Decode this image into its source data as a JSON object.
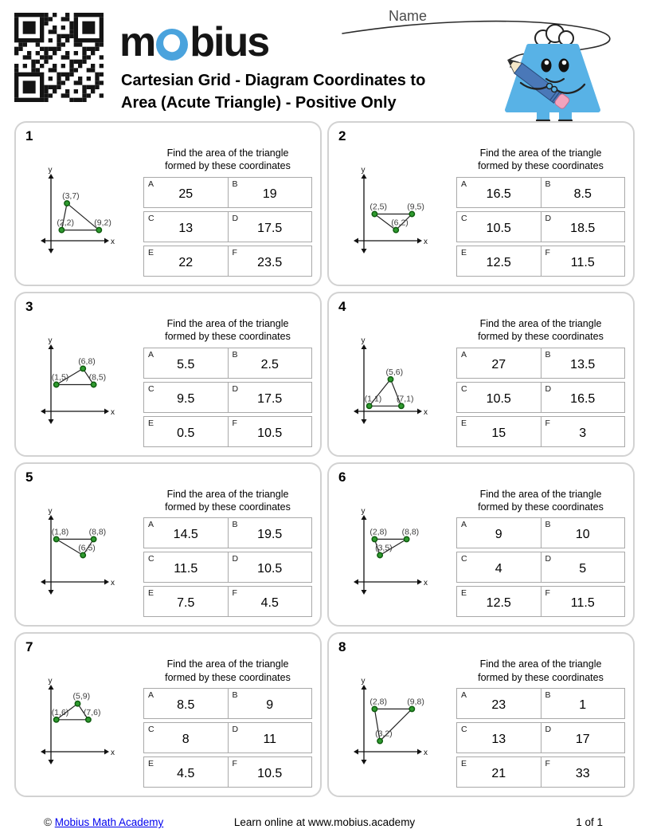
{
  "header": {
    "logo_text_m": "m",
    "logo_text_rest": "bius",
    "title_line1": "Cartesian Grid - Diagram Coordinates to",
    "title_line2": "Area (Acute Triangle) - Positive Only",
    "name_label": "Name"
  },
  "prompt": {
    "line1": "Find the area of the triangle",
    "line2": "formed by these coordinates"
  },
  "axis_labels": {
    "x": "x",
    "y": "y"
  },
  "problems": [
    {
      "number": "1",
      "points": [
        [
          3,
          7
        ],
        [
          2,
          2
        ],
        [
          9,
          2
        ]
      ],
      "point_labels": [
        "(3,7)",
        "(2,2)",
        "(9,2)"
      ],
      "answers": [
        {
          "letter": "A",
          "value": "25"
        },
        {
          "letter": "B",
          "value": "19"
        },
        {
          "letter": "C",
          "value": "13"
        },
        {
          "letter": "D",
          "value": "17.5"
        },
        {
          "letter": "E",
          "value": "22"
        },
        {
          "letter": "F",
          "value": "23.5"
        }
      ]
    },
    {
      "number": "2",
      "points": [
        [
          2,
          5
        ],
        [
          9,
          5
        ],
        [
          6,
          2
        ]
      ],
      "point_labels": [
        "(2,5)",
        "(9,5)",
        "(6,2)"
      ],
      "answers": [
        {
          "letter": "A",
          "value": "16.5"
        },
        {
          "letter": "B",
          "value": "8.5"
        },
        {
          "letter": "C",
          "value": "10.5"
        },
        {
          "letter": "D",
          "value": "18.5"
        },
        {
          "letter": "E",
          "value": "12.5"
        },
        {
          "letter": "F",
          "value": "11.5"
        }
      ]
    },
    {
      "number": "3",
      "points": [
        [
          6,
          8
        ],
        [
          1,
          5
        ],
        [
          8,
          5
        ]
      ],
      "point_labels": [
        "(6,8)",
        "(1,5)",
        "(8,5)"
      ],
      "answers": [
        {
          "letter": "A",
          "value": "5.5"
        },
        {
          "letter": "B",
          "value": "2.5"
        },
        {
          "letter": "C",
          "value": "9.5"
        },
        {
          "letter": "D",
          "value": "17.5"
        },
        {
          "letter": "E",
          "value": "0.5"
        },
        {
          "letter": "F",
          "value": "10.5"
        }
      ]
    },
    {
      "number": "4",
      "points": [
        [
          5,
          6
        ],
        [
          1,
          1
        ],
        [
          7,
          1
        ]
      ],
      "point_labels": [
        "(5,6)",
        "(1,1)",
        "(7,1)"
      ],
      "answers": [
        {
          "letter": "A",
          "value": "27"
        },
        {
          "letter": "B",
          "value": "13.5"
        },
        {
          "letter": "C",
          "value": "10.5"
        },
        {
          "letter": "D",
          "value": "16.5"
        },
        {
          "letter": "E",
          "value": "15"
        },
        {
          "letter": "F",
          "value": "3"
        }
      ]
    },
    {
      "number": "5",
      "points": [
        [
          1,
          8
        ],
        [
          8,
          8
        ],
        [
          6,
          5
        ]
      ],
      "point_labels": [
        "(1,8)",
        "(8,8)",
        "(6,5)"
      ],
      "answers": [
        {
          "letter": "A",
          "value": "14.5"
        },
        {
          "letter": "B",
          "value": "19.5"
        },
        {
          "letter": "C",
          "value": "11.5"
        },
        {
          "letter": "D",
          "value": "10.5"
        },
        {
          "letter": "E",
          "value": "7.5"
        },
        {
          "letter": "F",
          "value": "4.5"
        }
      ]
    },
    {
      "number": "6",
      "points": [
        [
          2,
          8
        ],
        [
          8,
          8
        ],
        [
          3,
          5
        ]
      ],
      "point_labels": [
        "(2,8)",
        "(8,8)",
        "(3,5)"
      ],
      "answers": [
        {
          "letter": "A",
          "value": "9"
        },
        {
          "letter": "B",
          "value": "10"
        },
        {
          "letter": "C",
          "value": "4"
        },
        {
          "letter": "D",
          "value": "5"
        },
        {
          "letter": "E",
          "value": "12.5"
        },
        {
          "letter": "F",
          "value": "11.5"
        }
      ]
    },
    {
      "number": "7",
      "points": [
        [
          5,
          9
        ],
        [
          1,
          6
        ],
        [
          7,
          6
        ]
      ],
      "point_labels": [
        "(5,9)",
        "(1,6)",
        "(7,6)"
      ],
      "answers": [
        {
          "letter": "A",
          "value": "8.5"
        },
        {
          "letter": "B",
          "value": "9"
        },
        {
          "letter": "C",
          "value": "8"
        },
        {
          "letter": "D",
          "value": "11"
        },
        {
          "letter": "E",
          "value": "4.5"
        },
        {
          "letter": "F",
          "value": "10.5"
        }
      ]
    },
    {
      "number": "8",
      "points": [
        [
          2,
          8
        ],
        [
          9,
          8
        ],
        [
          3,
          2
        ]
      ],
      "point_labels": [
        "(2,8)",
        "(9,8)",
        "(3,2)"
      ],
      "answers": [
        {
          "letter": "A",
          "value": "23"
        },
        {
          "letter": "B",
          "value": "1"
        },
        {
          "letter": "C",
          "value": "13"
        },
        {
          "letter": "D",
          "value": "17"
        },
        {
          "letter": "E",
          "value": "21"
        },
        {
          "letter": "F",
          "value": "33"
        }
      ]
    }
  ],
  "footer": {
    "copyright_symbol": "©",
    "link_text": "Mobius Math Academy",
    "center_text": "Learn online at www.mobius.academy",
    "page_indicator": "1 of 1"
  },
  "colors": {
    "point_fill": "#2f9b2f",
    "point_stroke": "#0f5c0f",
    "card_border": "#d2d2d2",
    "table_border": "#a9a9a9",
    "logo_accent": "#4aa3dd",
    "mascot_blue": "#58b2e6",
    "pencil_blue": "#4a78b8",
    "eraser_pink": "#f3a3bd",
    "link_blue": "#0000ee"
  }
}
